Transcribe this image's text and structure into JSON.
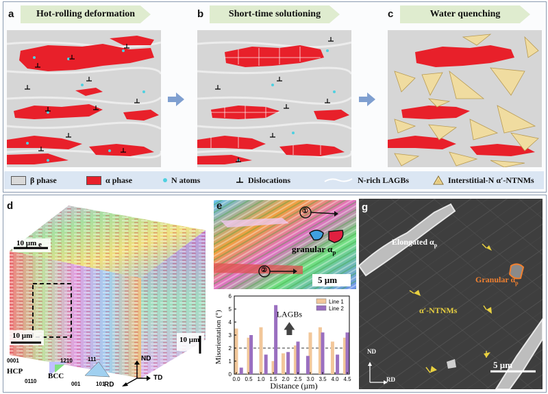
{
  "panels": {
    "a": {
      "letter": "a",
      "title": "Hot-rolling deformation"
    },
    "b": {
      "letter": "b",
      "title": "Short-time solutioning"
    },
    "c": {
      "letter": "c",
      "title": "Water quenching"
    },
    "d": {
      "letter": "d",
      "inset_label": "e",
      "scale_top": "10 µm",
      "scale_left": "10 µm",
      "scale_right": "10 µm",
      "hcp_label": "HCP",
      "hcp_0001": "0001",
      "hcp_1210": "1210",
      "hcp_0110": "0110",
      "bcc_label": "BCC",
      "bcc_111": "111",
      "bcc_001": "001",
      "bcc_101": "101",
      "axis_nd": "ND",
      "axis_rd": "RD",
      "axis_td": "TD"
    },
    "e": {
      "letter": "e",
      "marker1": "①",
      "marker2": "②",
      "granular": "granular α",
      "granular_sub": "p",
      "scale": "5 µm"
    },
    "f": {
      "letter": "f",
      "lagbs": "LAGBs"
    },
    "g": {
      "letter": "g",
      "elongated": "Elongated α",
      "elongated_sub": "p",
      "granular": "Granular α",
      "granular_sub": "p",
      "ntnms": "α′-NTNMs",
      "nd": "ND",
      "rd": "RD",
      "scale": "5 µm"
    }
  },
  "legend": {
    "beta": "β phase",
    "alpha": "α phase",
    "n_atoms": "N atoms",
    "dislocations": "Dislocations",
    "lagbs": "N-rich LAGBs",
    "ntnms": "Interstitial-N α′-NTNMs"
  },
  "colors": {
    "alpha": "#e8202a",
    "beta": "#d9d9d9",
    "n_atom": "#4fd0e0",
    "banner": "#dfeccf",
    "legend": "#dbe6f3",
    "line1": "#f2c79a",
    "line2": "#9a6fc0",
    "ntnm": "#f0dca0"
  },
  "chart_data": {
    "type": "bar",
    "xlabel": "Distance (µm)",
    "ylabel": "Misorientation (°)",
    "xlim": [
      0,
      4.5
    ],
    "ylim": [
      0,
      6
    ],
    "xticks": [
      "0.0",
      "0.5",
      "1.0",
      "1.5",
      "2.0",
      "2.5",
      "3.0",
      "3.5",
      "4.0",
      "4.5"
    ],
    "yticks": [
      "0",
      "1",
      "2",
      "3",
      "4",
      "5",
      "6"
    ],
    "threshold": 2,
    "annotation": "LAGBs",
    "series": [
      {
        "name": "Line 1",
        "x": [
          0.0,
          0.5,
          1.0,
          1.5,
          1.9,
          2.4,
          3.0,
          3.4,
          3.9,
          4.4
        ],
        "values": [
          3.5,
          2.8,
          3.6,
          1.0,
          1.6,
          2.2,
          3.2,
          3.6,
          2.5,
          2.8
        ]
      },
      {
        "name": "Line 2",
        "x": [
          0.2,
          0.6,
          1.2,
          1.6,
          2.1,
          2.5,
          2.9,
          3.5,
          4.1,
          4.5
        ],
        "values": [
          0.5,
          3.0,
          1.5,
          5.3,
          1.7,
          2.5,
          1.4,
          3.2,
          1.5,
          3.2
        ]
      }
    ]
  }
}
